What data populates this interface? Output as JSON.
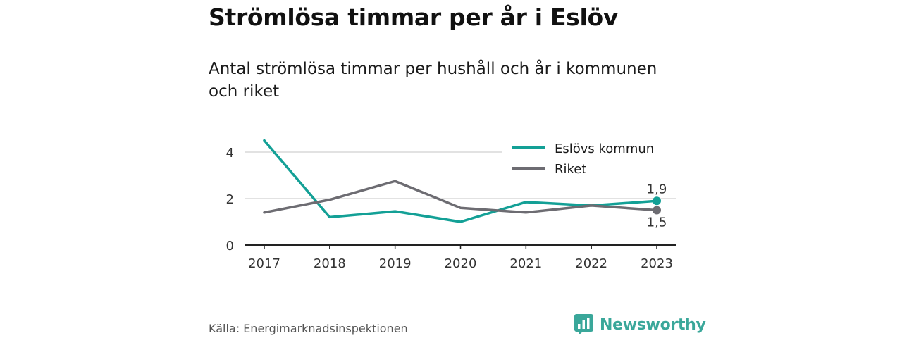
{
  "title": "Strömlösa timmar per år i Eslöv",
  "subtitle": "Antal strömlösa timmar per hushåll och år i kommunen och riket",
  "source": "Källa: Energimarknadsinspektionen",
  "brand": {
    "name": "Newsworthy",
    "icon": "bar-chart-speech-bubble-icon",
    "color": "#3aa79a"
  },
  "colors": {
    "eslov": "#13a096",
    "riket": "#6d6c72",
    "grid": "#d9d9d9",
    "axis": "#222222"
  },
  "chart_data": {
    "type": "line",
    "x": [
      "2017",
      "2018",
      "2019",
      "2020",
      "2021",
      "2022",
      "2023"
    ],
    "ylim": [
      0,
      4.8
    ],
    "yticks": [
      0,
      2,
      4
    ],
    "ytick_labels": [
      "0",
      "2",
      "4"
    ],
    "grid": true,
    "legend_position": "top-right",
    "series": [
      {
        "name": "Eslövs kommun",
        "color": "#13a096",
        "values": [
          4.5,
          1.2,
          1.45,
          1.0,
          1.85,
          1.7,
          1.9
        ],
        "end_label": "1,9"
      },
      {
        "name": "Riket",
        "color": "#6d6c72",
        "values": [
          1.4,
          1.95,
          2.75,
          1.6,
          1.4,
          1.7,
          1.5
        ],
        "end_label": "1,5"
      }
    ]
  }
}
